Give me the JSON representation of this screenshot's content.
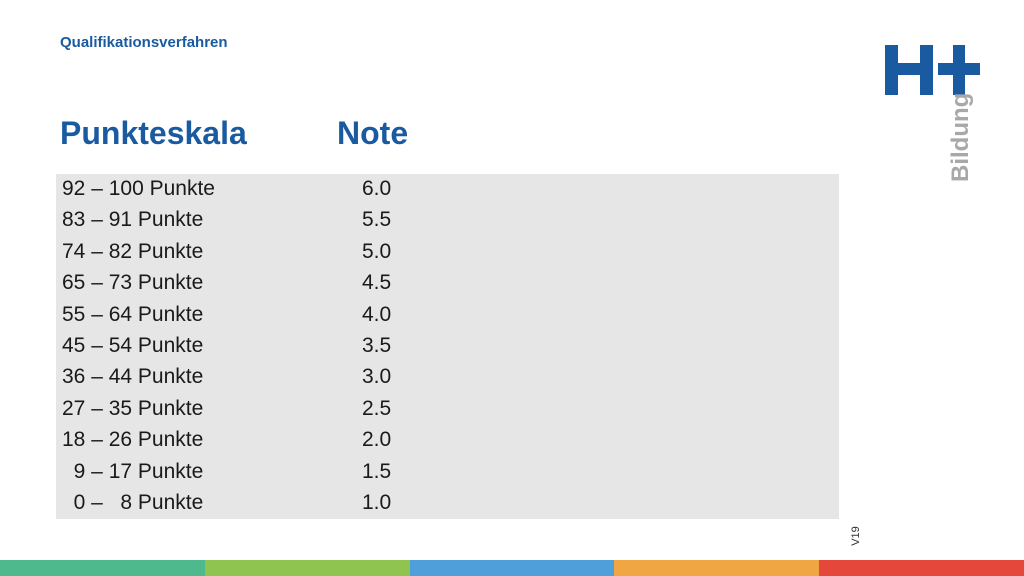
{
  "header": {
    "subtitle": "Qualifikationsverfahren",
    "col_points": "Punkteskala",
    "col_grade": "Note"
  },
  "rows": [
    {
      "points": "92 – 100 Punkte",
      "grade": "6.0"
    },
    {
      "points": "83 – 91 Punkte",
      "grade": "5.5"
    },
    {
      "points": "74 – 82 Punkte",
      "grade": "5.0"
    },
    {
      "points": "65 – 73 Punkte",
      "grade": "4.5"
    },
    {
      "points": "55 – 64 Punkte",
      "grade": "4.0"
    },
    {
      "points": "45 – 54 Punkte",
      "grade": "3.5"
    },
    {
      "points": "36 – 44 Punkte",
      "grade": "3.0"
    },
    {
      "points": "27 – 35 Punkte",
      "grade": "2.5"
    },
    {
      "points": "18 – 26 Punkte",
      "grade": "2.0"
    },
    {
      "points": "  9 – 17 Punkte",
      "grade": "1.5"
    },
    {
      "points": "  0 –   8 Punkte",
      "grade": "1.0"
    }
  ],
  "logo": {
    "mark": "H+",
    "word": "Bildung",
    "color": "#1a5aa0"
  },
  "version": "V19",
  "footer_colors": [
    "#4fb98e",
    "#8ec44f",
    "#4f9fdb",
    "#f0a642",
    "#e5483a"
  ]
}
